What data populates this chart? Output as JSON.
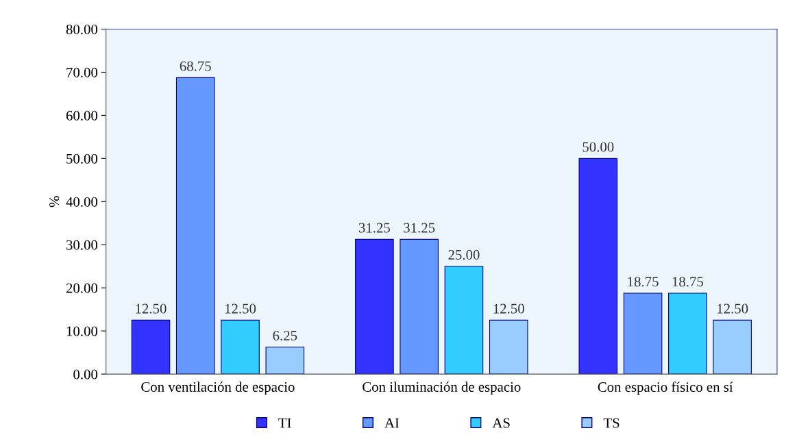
{
  "chart_data": {
    "type": "bar",
    "ylabel": "%",
    "categories": [
      "Con ventilación de espacio",
      "Con iluminación de espacio",
      "Con espacio físico en sí"
    ],
    "series": [
      {
        "name": "TI",
        "color": "#3333ff",
        "values": [
          12.5,
          31.25,
          50.0
        ],
        "value_labels": [
          "12.50",
          "31.25",
          "50.00"
        ]
      },
      {
        "name": "AI",
        "color": "#6699ff",
        "values": [
          68.75,
          31.25,
          18.75
        ],
        "value_labels": [
          "68.75",
          "31.25",
          "18.75"
        ]
      },
      {
        "name": "AS",
        "color": "#33ccff",
        "values": [
          12.5,
          25.0,
          18.75
        ],
        "value_labels": [
          "12.50",
          "25.00",
          "18.75"
        ]
      },
      {
        "name": "TS",
        "color": "#99ccff",
        "values": [
          6.25,
          12.5,
          12.5
        ],
        "value_labels": [
          "6.25",
          "12.50",
          "12.50"
        ]
      }
    ],
    "ylim": [
      0,
      80
    ],
    "yticks": [
      {
        "value": 0,
        "label": "0.00"
      },
      {
        "value": 10,
        "label": "10.00"
      },
      {
        "value": 20,
        "label": "20.00"
      },
      {
        "value": 30,
        "label": "30.00"
      },
      {
        "value": 40,
        "label": "40.00"
      },
      {
        "value": 50,
        "label": "50.00"
      },
      {
        "value": 60,
        "label": "60.00"
      },
      {
        "value": 70,
        "label": "70.00"
      },
      {
        "value": 80,
        "label": "80.00"
      }
    ],
    "grid": false,
    "legend": "bottom"
  }
}
